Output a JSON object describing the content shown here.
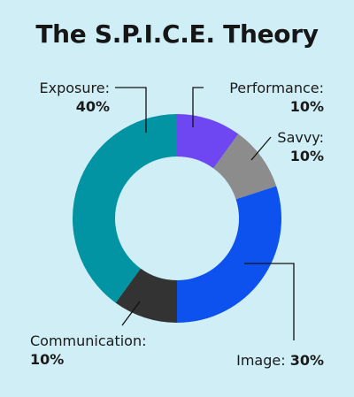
{
  "title": "The S.P.I.C.E. Theory",
  "chart_data": {
    "type": "pie",
    "title": "The S.P.I.C.E. Theory",
    "donut": true,
    "slices": [
      {
        "label": "Performance",
        "value": 10,
        "display": "10%",
        "color": "#6f47f2"
      },
      {
        "label": "Savvy",
        "value": 10,
        "display": "10%",
        "color": "#8c8c8c"
      },
      {
        "label": "Image",
        "value": 30,
        "display": "30%",
        "color": "#0d52ef"
      },
      {
        "label": "Communication",
        "value": 10,
        "display": "10%",
        "color": "#333333"
      },
      {
        "label": "Exposure",
        "value": 40,
        "display": "40%",
        "color": "#0394a3"
      }
    ]
  }
}
